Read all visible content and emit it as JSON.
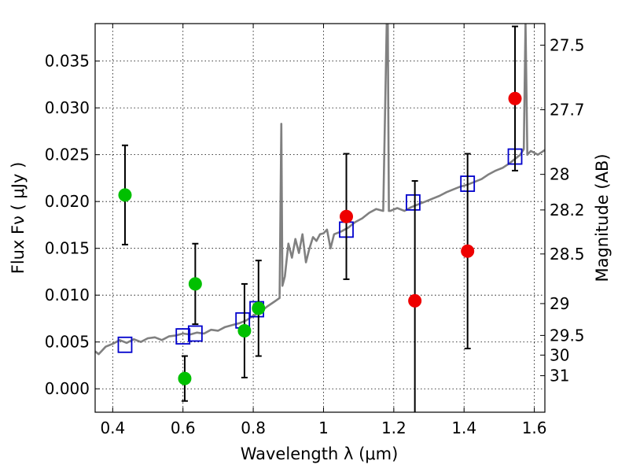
{
  "chart_data": {
    "type": "scatter",
    "xlabel": "Wavelength  λ (μm)",
    "ylabel": "Flux  Fν  ( μJy )",
    "ylabel_right": "Magnitude (AB)",
    "xlim": [
      0.35,
      1.63
    ],
    "ylim": [
      -0.0025,
      0.039
    ],
    "x_ticks": [
      0.4,
      0.6,
      0.8,
      1.0,
      1.2,
      1.4,
      1.6
    ],
    "x_tick_labels": [
      "0.4",
      "0.6",
      "0.8",
      "1",
      "1.2",
      "1.4",
      "1.6"
    ],
    "y_ticks": [
      0.0,
      0.005,
      0.01,
      0.015,
      0.02,
      0.025,
      0.03,
      0.035
    ],
    "y_tick_labels": [
      "0.000",
      "0.005",
      "0.010",
      "0.015",
      "0.020",
      "0.025",
      "0.030",
      "0.035"
    ],
    "right_ticks": [
      {
        "flux": 0.0367,
        "label": "27.5"
      },
      {
        "flux": 0.0298,
        "label": "27.7"
      },
      {
        "flux": 0.0229,
        "label": "28"
      },
      {
        "flux": 0.0191,
        "label": "28.2"
      },
      {
        "flux": 0.0144,
        "label": "28.5"
      },
      {
        "flux": 0.0091,
        "label": "29"
      },
      {
        "flux": 0.0057,
        "label": "29.5"
      },
      {
        "flux": 0.0036,
        "label": "30"
      },
      {
        "flux": 0.0014,
        "label": "31"
      }
    ],
    "grid": true,
    "series": [
      {
        "kind": "line",
        "color": "#808080",
        "x": [
          0.35,
          0.36,
          0.38,
          0.4,
          0.42,
          0.44,
          0.46,
          0.48,
          0.5,
          0.52,
          0.54,
          0.56,
          0.58,
          0.6,
          0.62,
          0.64,
          0.66,
          0.68,
          0.7,
          0.72,
          0.74,
          0.76,
          0.78,
          0.8,
          0.82,
          0.84,
          0.86,
          0.875,
          0.88,
          0.883,
          0.89,
          0.9,
          0.91,
          0.92,
          0.93,
          0.94,
          0.95,
          0.96,
          0.97,
          0.98,
          0.99,
          1.0,
          1.01,
          1.02,
          1.03,
          1.05,
          1.07,
          1.09,
          1.11,
          1.13,
          1.15,
          1.17,
          1.18,
          1.183,
          1.186,
          1.19,
          1.21,
          1.23,
          1.25,
          1.27,
          1.29,
          1.31,
          1.33,
          1.35,
          1.37,
          1.39,
          1.41,
          1.43,
          1.45,
          1.47,
          1.49,
          1.51,
          1.53,
          1.55,
          1.56,
          1.57,
          1.575,
          1.58,
          1.59,
          1.61,
          1.63
        ],
        "y": [
          0.004,
          0.0037,
          0.0045,
          0.0048,
          0.0052,
          0.0049,
          0.0053,
          0.005,
          0.0054,
          0.0055,
          0.0052,
          0.0056,
          0.0057,
          0.0059,
          0.0058,
          0.006,
          0.0059,
          0.0063,
          0.0062,
          0.0066,
          0.0068,
          0.007,
          0.0073,
          0.0078,
          0.0082,
          0.0088,
          0.0093,
          0.0097,
          0.0283,
          0.011,
          0.012,
          0.0155,
          0.014,
          0.016,
          0.0145,
          0.0165,
          0.0135,
          0.015,
          0.0162,
          0.0158,
          0.0165,
          0.0166,
          0.017,
          0.015,
          0.0165,
          0.0168,
          0.0172,
          0.0178,
          0.0182,
          0.0188,
          0.0192,
          0.019,
          0.0392,
          0.0392,
          0.019,
          0.019,
          0.0193,
          0.019,
          0.0194,
          0.0197,
          0.02,
          0.0203,
          0.0206,
          0.021,
          0.0213,
          0.0216,
          0.0218,
          0.0221,
          0.0224,
          0.0229,
          0.0233,
          0.0236,
          0.0241,
          0.0247,
          0.025,
          0.0256,
          0.0392,
          0.025,
          0.0254,
          0.025,
          0.0255
        ]
      },
      {
        "kind": "model_squares",
        "color": "#0000cc",
        "x": [
          0.435,
          0.6,
          0.635,
          0.77,
          0.81,
          1.065,
          1.255,
          1.41,
          1.545
        ],
        "y": [
          0.0047,
          0.0056,
          0.0059,
          0.0073,
          0.0085,
          0.017,
          0.0199,
          0.0219,
          0.0248
        ]
      },
      {
        "kind": "points_with_errors",
        "color": "#00c000",
        "x": [
          0.435,
          0.605,
          0.635,
          0.775,
          0.815
        ],
        "y": [
          0.0207,
          0.0011,
          0.0112,
          0.0062,
          0.0086
        ],
        "err": [
          0.0053,
          0.0024,
          0.0043,
          0.005,
          0.0051
        ]
      },
      {
        "kind": "points_with_errors",
        "color": "#ee0000",
        "x": [
          1.065,
          1.26,
          1.41,
          1.545
        ],
        "y": [
          0.0184,
          0.0094,
          0.0147,
          0.031
        ],
        "err": [
          0.0067,
          0.0128,
          0.0104,
          0.0077
        ]
      }
    ]
  }
}
